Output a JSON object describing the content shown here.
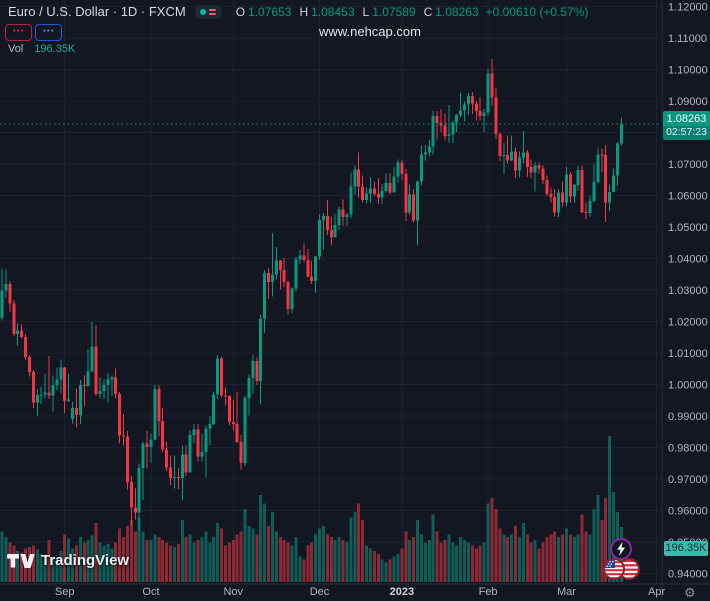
{
  "header": {
    "title": "Euro / U.S. Dollar · 1D · FXCM",
    "ohlc": {
      "o_label": "O",
      "o": "1.07653",
      "h_label": "H",
      "h": "1.08453",
      "l_label": "L",
      "l": "1.07589",
      "c_label": "C",
      "c": "1.08263",
      "change": "+0.00610 (+0.57%)"
    },
    "sell_button_label": "•••",
    "buy_button_label": "•••"
  },
  "volume_legend": {
    "name": "Vol",
    "value": "196.35K"
  },
  "watermark": "www.nehcap.com",
  "logo": {
    "text": "TradingView"
  },
  "price_scale": {
    "last_price": "1.08263",
    "countdown": "02:57:23",
    "volume_label": "196.35K",
    "ticks": [
      {
        "v": 1.12,
        "t": "1.12000"
      },
      {
        "v": 1.11,
        "t": "1.11000"
      },
      {
        "v": 1.1,
        "t": "1.10000"
      },
      {
        "v": 1.09,
        "t": "1.09000"
      },
      {
        "v": 1.08,
        "t": "1.08000"
      },
      {
        "v": 1.07,
        "t": "1.07000"
      },
      {
        "v": 1.06,
        "t": "1.06000"
      },
      {
        "v": 1.05,
        "t": "1.05000"
      },
      {
        "v": 1.04,
        "t": "1.04000"
      },
      {
        "v": 1.03,
        "t": "1.03000"
      },
      {
        "v": 1.02,
        "t": "1.02000"
      },
      {
        "v": 1.01,
        "t": "1.01000"
      },
      {
        "v": 1.0,
        "t": "1.00000"
      },
      {
        "v": 0.99,
        "t": "0.99000"
      },
      {
        "v": 0.98,
        "t": "0.98000"
      },
      {
        "v": 0.97,
        "t": "0.97000"
      },
      {
        "v": 0.96,
        "t": "0.96000"
      },
      {
        "v": 0.95,
        "t": "0.95000"
      },
      {
        "v": 0.94,
        "t": "0.94000"
      }
    ]
  },
  "time_axis": {
    "labels": [
      {
        "text": "Sep",
        "i": 16,
        "strong": false
      },
      {
        "text": "Oct",
        "i": 38,
        "strong": false
      },
      {
        "text": "Nov",
        "i": 59,
        "strong": false
      },
      {
        "text": "Dec",
        "i": 81,
        "strong": false
      },
      {
        "text": "2023",
        "i": 102,
        "strong": true
      },
      {
        "text": "Feb",
        "i": 124,
        "strong": false
      },
      {
        "text": "Mar",
        "i": 144,
        "strong": false
      },
      {
        "text": "Apr",
        "i": 167,
        "strong": false
      }
    ]
  },
  "colors": {
    "up": "#089981",
    "down": "#f23645",
    "grid": "#1c2230",
    "axis_text": "#b2b5be",
    "axis_text_strong": "#d1d4dc",
    "separator": "#2a2e39",
    "price_line": "#089981"
  },
  "chart_data": {
    "type": "candlestick",
    "title": "Euro / U.S. Dollar",
    "interval": "1D",
    "exchange": "FXCM",
    "legend_ohlc": {
      "open": 1.07653,
      "high": 1.08453,
      "low": 1.07589,
      "close": 1.08263,
      "change": 0.0061,
      "change_pct": 0.57
    },
    "y_axis": {
      "min": 0.94,
      "max": 1.12,
      "tick_step": 0.01
    },
    "x_axis_month_labels": [
      "Sep",
      "Oct",
      "Nov",
      "Dec",
      "2023",
      "Feb",
      "Mar",
      "Apr"
    ],
    "volume_unit": "K",
    "last_volume": 196.35,
    "candles_format": [
      "open",
      "high",
      "low",
      "close",
      "volume_K"
    ],
    "candles": [
      [
        1.0211,
        1.0369,
        1.0203,
        1.0298,
        180
      ],
      [
        1.0298,
        1.0365,
        1.0276,
        1.0319,
        160
      ],
      [
        1.0319,
        1.0329,
        1.0232,
        1.0257,
        140
      ],
      [
        1.0257,
        1.0268,
        1.0154,
        1.016,
        130
      ],
      [
        1.016,
        1.0195,
        1.0124,
        1.0171,
        110
      ],
      [
        1.0171,
        1.019,
        1.0146,
        1.0151,
        105
      ],
      [
        1.0151,
        1.016,
        1.008,
        1.0088,
        120
      ],
      [
        1.0088,
        1.0092,
        1.0026,
        1.004,
        125
      ],
      [
        1.004,
        1.0046,
        0.9926,
        0.9943,
        130
      ],
      [
        0.9943,
        0.9985,
        0.9901,
        0.9966,
        115
      ],
      [
        0.9966,
        0.9992,
        0.9938,
        0.9968,
        100
      ],
      [
        0.9968,
        1.0033,
        0.9956,
        0.9974,
        95
      ],
      [
        0.9974,
        1.009,
        0.9954,
        0.9965,
        150
      ],
      [
        0.9965,
        1.0028,
        0.9914,
        0.9999,
        90
      ],
      [
        0.9999,
        1.0054,
        0.9983,
        1.0016,
        85
      ],
      [
        1.0016,
        1.0079,
        0.9972,
        1.0054,
        110
      ],
      [
        1.0054,
        1.0055,
        0.991,
        0.9948,
        170
      ],
      [
        0.9948,
        1.0033,
        0.9944,
        0.9953,
        155
      ],
      [
        0.989,
        0.9945,
        0.9876,
        0.9926,
        120
      ],
      [
        0.9926,
        0.9987,
        0.9863,
        0.9903,
        130
      ],
      [
        0.9903,
        1.0015,
        0.9875,
        0.9998,
        160
      ],
      [
        0.9998,
        1.0029,
        0.993,
        0.9995,
        140
      ],
      [
        0.9995,
        1.0113,
        0.9993,
        1.0041,
        150
      ],
      [
        1.0041,
        1.0198,
        1.004,
        1.012,
        165
      ],
      [
        1.012,
        1.0187,
        0.9964,
        0.997,
        210
      ],
      [
        0.997,
        1.0023,
        0.9955,
        0.9979,
        140
      ],
      [
        0.9979,
        1.0018,
        0.9954,
        0.9999,
        130
      ],
      [
        0.9999,
        1.0036,
        0.9943,
        1.0016,
        135
      ],
      [
        1.0016,
        1.0029,
        0.9964,
        1.0023,
        120
      ],
      [
        1.0023,
        1.0051,
        0.9955,
        0.997,
        140
      ],
      [
        0.997,
        0.9976,
        0.9813,
        0.9838,
        190
      ],
      [
        0.9838,
        0.9907,
        0.9807,
        0.9835,
        160
      ],
      [
        0.9835,
        0.9852,
        0.9667,
        0.969,
        200
      ],
      [
        0.969,
        0.9709,
        0.9554,
        0.9609,
        220
      ],
      [
        0.9609,
        0.967,
        0.9571,
        0.9593,
        180
      ],
      [
        0.9593,
        0.975,
        0.9536,
        0.9735,
        230
      ],
      [
        0.9735,
        0.9819,
        0.9634,
        0.9813,
        180
      ],
      [
        0.9813,
        0.9853,
        0.9733,
        0.9802,
        150
      ],
      [
        0.9802,
        0.9844,
        0.9751,
        0.9826,
        150
      ],
      [
        0.9826,
        0.9999,
        0.9824,
        0.9985,
        170
      ],
      [
        0.9985,
        0.9999,
        0.9835,
        0.9884,
        160
      ],
      [
        0.9884,
        0.9926,
        0.9787,
        0.9794,
        150
      ],
      [
        0.9794,
        0.9819,
        0.9726,
        0.9737,
        140
      ],
      [
        0.9737,
        0.9774,
        0.9681,
        0.9703,
        130
      ],
      [
        0.9703,
        0.9774,
        0.967,
        0.9706,
        125
      ],
      [
        0.9706,
        0.9735,
        0.9668,
        0.9703,
        135
      ],
      [
        0.9703,
        0.9807,
        0.9632,
        0.9777,
        220
      ],
      [
        0.9777,
        0.9807,
        0.9709,
        0.9721,
        160
      ],
      [
        0.9721,
        0.9854,
        0.9721,
        0.984,
        170
      ],
      [
        0.984,
        0.9875,
        0.9814,
        0.9857,
        140
      ],
      [
        0.9857,
        0.9874,
        0.9756,
        0.9772,
        150
      ],
      [
        0.9772,
        0.9845,
        0.9754,
        0.9785,
        160
      ],
      [
        0.9785,
        0.987,
        0.9705,
        0.9861,
        180
      ],
      [
        0.9861,
        0.9899,
        0.9808,
        0.9874,
        140
      ],
      [
        0.9874,
        0.9976,
        0.9871,
        0.9968,
        160
      ],
      [
        0.9968,
        1.0093,
        0.9954,
        1.0082,
        210
      ],
      [
        1.0082,
        1.0089,
        0.9959,
        0.9965,
        190
      ],
      [
        0.9965,
        0.999,
        0.9934,
        0.9964,
        130
      ],
      [
        0.9964,
        0.9967,
        0.9872,
        0.9881,
        140
      ],
      [
        0.9881,
        0.9953,
        0.9854,
        0.9875,
        150
      ],
      [
        0.9875,
        0.9976,
        0.9815,
        0.9818,
        170
      ],
      [
        0.9818,
        0.984,
        0.973,
        0.9751,
        180
      ],
      [
        0.9751,
        0.9965,
        0.9741,
        0.9957,
        260
      ],
      [
        0.9957,
        1.0032,
        0.9902,
        1.002,
        200
      ],
      [
        1.002,
        1.0096,
        0.9972,
        1.0074,
        190
      ],
      [
        1.0074,
        1.0086,
        0.9998,
        1.0011,
        170
      ],
      [
        1.0011,
        1.0222,
        0.9936,
        1.021,
        310
      ],
      [
        1.021,
        1.0364,
        1.0163,
        1.0354,
        280
      ],
      [
        1.0354,
        1.037,
        1.0271,
        1.0325,
        200
      ],
      [
        1.0325,
        1.0481,
        1.0279,
        1.035,
        250
      ],
      [
        1.035,
        1.0437,
        1.0334,
        1.0393,
        180
      ],
      [
        1.0393,
        1.0396,
        1.0301,
        1.0363,
        160
      ],
      [
        1.0363,
        1.0402,
        1.031,
        1.0325,
        150
      ],
      [
        1.0325,
        1.033,
        1.0222,
        1.0239,
        140
      ],
      [
        1.0239,
        1.0309,
        1.0226,
        1.0304,
        130
      ],
      [
        1.0304,
        1.0405,
        1.0296,
        1.0397,
        160
      ],
      [
        1.0397,
        1.0427,
        1.0382,
        1.0409,
        90
      ],
      [
        1.0409,
        1.0448,
        1.0387,
        1.0395,
        80
      ],
      [
        1.0395,
        1.043,
        1.034,
        1.0343,
        130
      ],
      [
        1.0343,
        1.0394,
        1.0319,
        1.0328,
        140
      ],
      [
        1.0328,
        1.0408,
        1.029,
        1.0406,
        170
      ],
      [
        1.0406,
        1.0539,
        1.0395,
        1.0522,
        190
      ],
      [
        1.0522,
        1.0545,
        1.0428,
        1.0535,
        200
      ],
      [
        1.0535,
        1.0585,
        1.0475,
        1.049,
        170
      ],
      [
        1.049,
        1.0531,
        1.0442,
        1.0468,
        160
      ],
      [
        1.0468,
        1.0541,
        1.0465,
        1.0507,
        150
      ],
      [
        1.0507,
        1.0563,
        1.0491,
        1.0556,
        160
      ],
      [
        1.0556,
        1.0587,
        1.0503,
        1.0531,
        150
      ],
      [
        1.0531,
        1.0545,
        1.0505,
        1.0539,
        140
      ],
      [
        1.0539,
        1.0673,
        1.0529,
        1.0629,
        230
      ],
      [
        1.0629,
        1.0695,
        1.0601,
        1.0682,
        250
      ],
      [
        1.0682,
        1.0736,
        1.0594,
        1.0628,
        280
      ],
      [
        1.0628,
        1.0664,
        1.0577,
        1.0585,
        220
      ],
      [
        1.0585,
        1.0625,
        1.0574,
        1.0607,
        130
      ],
      [
        1.0607,
        1.0658,
        1.0576,
        1.0622,
        120
      ],
      [
        1.0622,
        1.0645,
        1.0599,
        1.0604,
        110
      ],
      [
        1.0604,
        1.0656,
        1.0573,
        1.0594,
        100
      ],
      [
        1.0594,
        1.0636,
        1.0572,
        1.0614,
        80
      ],
      [
        1.0614,
        1.067,
        1.0609,
        1.064,
        70
      ],
      [
        1.064,
        1.0672,
        1.0603,
        1.061,
        80
      ],
      [
        1.061,
        1.069,
        1.0609,
        1.066,
        90
      ],
      [
        1.066,
        1.0714,
        1.064,
        1.0705,
        100
      ],
      [
        1.0705,
        1.0713,
        1.065,
        1.0668,
        120
      ],
      [
        1.0668,
        1.0684,
        1.0519,
        1.0546,
        180
      ],
      [
        1.0546,
        1.0635,
        1.054,
        1.0603,
        150
      ],
      [
        1.0603,
        1.0621,
        1.0515,
        1.0521,
        160
      ],
      [
        1.0521,
        1.0648,
        1.0443,
        1.0644,
        220
      ],
      [
        1.0644,
        1.076,
        1.0634,
        1.073,
        170
      ],
      [
        1.073,
        1.0761,
        1.0711,
        1.0736,
        140
      ],
      [
        1.0736,
        1.0776,
        1.0724,
        1.0756,
        150
      ],
      [
        1.0756,
        1.0868,
        1.073,
        1.0852,
        240
      ],
      [
        1.0852,
        1.0869,
        1.0778,
        1.083,
        180
      ],
      [
        1.083,
        1.0874,
        1.0802,
        1.0822,
        140
      ],
      [
        1.0822,
        1.086,
        1.0775,
        1.0789,
        150
      ],
      [
        1.0789,
        1.0887,
        1.0766,
        1.0793,
        170
      ],
      [
        1.0793,
        1.0838,
        1.0766,
        1.0832,
        140
      ],
      [
        1.0832,
        1.0858,
        1.0802,
        1.0855,
        130
      ],
      [
        1.0855,
        1.0927,
        1.0848,
        1.087,
        160
      ],
      [
        1.087,
        1.0898,
        1.0835,
        1.0889,
        150
      ],
      [
        1.0889,
        1.0925,
        1.0855,
        1.0916,
        140
      ],
      [
        1.0916,
        1.0929,
        1.0858,
        1.0892,
        130
      ],
      [
        1.0892,
        1.09,
        1.0838,
        1.0868,
        120
      ],
      [
        1.0868,
        1.0913,
        1.0838,
        1.0852,
        130
      ],
      [
        1.0852,
        1.0874,
        1.0802,
        1.0863,
        140
      ],
      [
        1.0863,
        1.1001,
        1.0852,
        1.0987,
        280
      ],
      [
        1.0987,
        1.1033,
        1.0885,
        1.0911,
        300
      ],
      [
        1.0911,
        1.094,
        1.078,
        1.0795,
        260
      ],
      [
        1.0795,
        1.08,
        1.0709,
        1.0725,
        190
      ],
      [
        1.0725,
        1.0766,
        1.0669,
        1.0728,
        170
      ],
      [
        1.0728,
        1.0791,
        1.0701,
        1.0711,
        160
      ],
      [
        1.0711,
        1.079,
        1.0709,
        1.0739,
        170
      ],
      [
        1.0739,
        1.0752,
        1.0656,
        1.0679,
        200
      ],
      [
        1.0679,
        1.0739,
        1.0657,
        1.072,
        160
      ],
      [
        1.072,
        1.0804,
        1.0701,
        1.0737,
        210
      ],
      [
        1.0737,
        1.0744,
        1.0659,
        1.069,
        170
      ],
      [
        1.069,
        1.0714,
        1.0655,
        1.0673,
        140
      ],
      [
        1.0673,
        1.0706,
        1.0613,
        1.0695,
        150
      ],
      [
        1.0695,
        1.0705,
        1.0668,
        1.0686,
        120
      ],
      [
        1.0686,
        1.0697,
        1.0636,
        1.0649,
        140
      ],
      [
        1.0649,
        1.0664,
        1.0598,
        1.0605,
        160
      ],
      [
        1.0605,
        1.0625,
        1.0577,
        1.0595,
        170
      ],
      [
        1.0595,
        1.062,
        1.0533,
        1.0546,
        180
      ],
      [
        1.0546,
        1.0619,
        1.0532,
        1.0609,
        160
      ],
      [
        1.0609,
        1.0645,
        1.0565,
        1.0577,
        170
      ],
      [
        1.0577,
        1.0691,
        1.0565,
        1.0666,
        190
      ],
      [
        1.0666,
        1.0674,
        1.0577,
        1.0597,
        170
      ],
      [
        1.0597,
        1.0637,
        1.0576,
        1.0634,
        160
      ],
      [
        1.0634,
        1.0694,
        1.0615,
        1.0681,
        170
      ],
      [
        1.0681,
        1.0695,
        1.0545,
        1.0548,
        240
      ],
      [
        1.0548,
        1.0577,
        1.0524,
        1.0545,
        180
      ],
      [
        1.0545,
        1.06,
        1.0531,
        1.0582,
        170
      ],
      [
        1.0582,
        1.0701,
        1.0578,
        1.0643,
        260
      ],
      [
        1.0643,
        1.0749,
        1.064,
        1.073,
        310
      ],
      [
        1.073,
        1.075,
        1.0674,
        1.0728,
        220
      ],
      [
        1.0728,
        1.076,
        1.0516,
        1.0577,
        300
      ],
      [
        1.0577,
        1.0635,
        1.0551,
        1.0611,
        520
      ],
      [
        1.0611,
        1.0686,
        1.0611,
        1.0663,
        320
      ],
      [
        1.0663,
        1.077,
        1.0632,
        1.07653,
        250
      ],
      [
        1.07653,
        1.08453,
        1.07589,
        1.08263,
        196.35
      ]
    ]
  }
}
